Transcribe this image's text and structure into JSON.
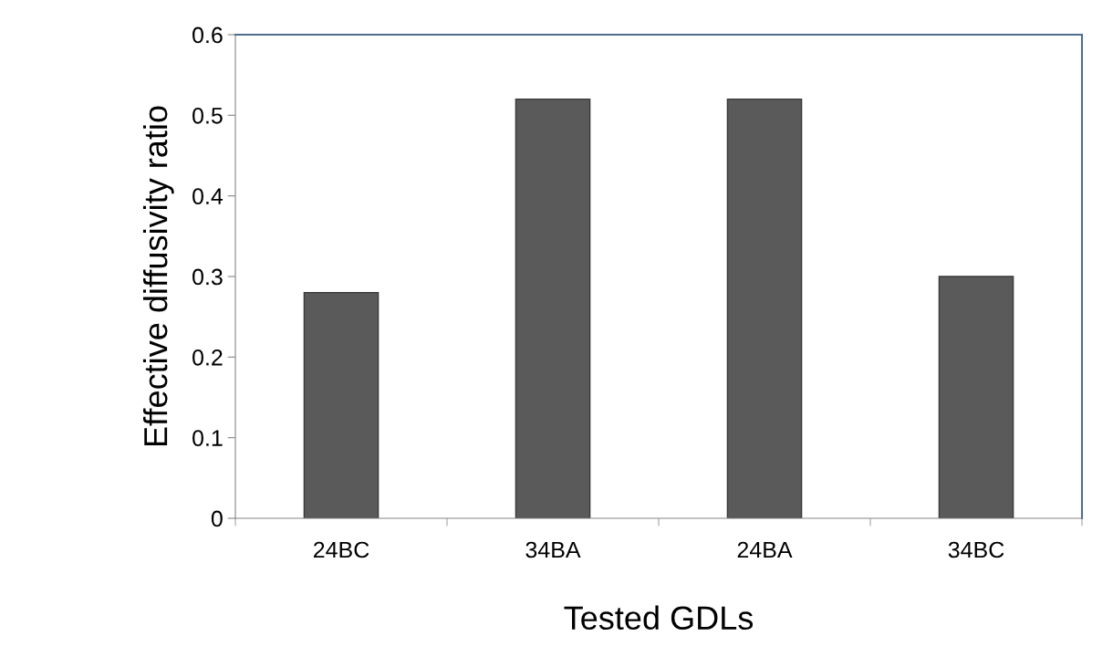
{
  "chart_data": {
    "type": "bar",
    "xlabel": "Tested GDLs",
    "ylabel": "Effective diffusivity ratio",
    "categories": [
      "24BC",
      "34BA",
      "24BA",
      "34BC"
    ],
    "values": [
      0.28,
      0.52,
      0.52,
      0.3
    ],
    "color": "#5a5a5a",
    "ylim": [
      0,
      0.6
    ],
    "yticks": [
      0,
      0.1,
      0.2,
      0.3,
      0.4,
      0.5,
      0.6
    ],
    "grid": false,
    "legend": false
  }
}
